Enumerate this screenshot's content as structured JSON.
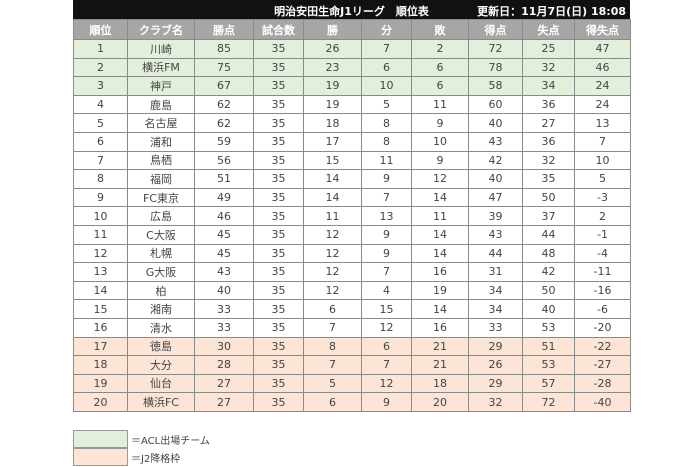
{
  "title": "明治安田生命J1リーグ　順位表",
  "updated": "更新日：11月7日(日) 18:08",
  "colors": {
    "header_bg": "#111111",
    "col_header_bg": "#a6a6a6",
    "acl": "#e2efda",
    "relegation": "#fce4d6"
  },
  "columns": [
    "順位",
    "クラブ名",
    "勝点",
    "試合数",
    "勝",
    "分",
    "敗",
    "得点",
    "失点",
    "得失点"
  ],
  "rows": [
    {
      "zone": "acl",
      "cells": [
        "1",
        "川崎",
        "85",
        "35",
        "26",
        "7",
        "2",
        "72",
        "25",
        "47"
      ]
    },
    {
      "zone": "acl",
      "cells": [
        "2",
        "横浜FM",
        "75",
        "35",
        "23",
        "6",
        "6",
        "78",
        "32",
        "46"
      ]
    },
    {
      "zone": "acl",
      "cells": [
        "3",
        "神戸",
        "67",
        "35",
        "19",
        "10",
        "6",
        "58",
        "34",
        "24"
      ]
    },
    {
      "zone": "",
      "cells": [
        "4",
        "鹿島",
        "62",
        "35",
        "19",
        "5",
        "11",
        "60",
        "36",
        "24"
      ]
    },
    {
      "zone": "",
      "cells": [
        "5",
        "名古屋",
        "62",
        "35",
        "18",
        "8",
        "9",
        "40",
        "27",
        "13"
      ]
    },
    {
      "zone": "",
      "cells": [
        "6",
        "浦和",
        "59",
        "35",
        "17",
        "8",
        "10",
        "43",
        "36",
        "7"
      ]
    },
    {
      "zone": "",
      "cells": [
        "7",
        "鳥栖",
        "56",
        "35",
        "15",
        "11",
        "9",
        "42",
        "32",
        "10"
      ]
    },
    {
      "zone": "",
      "cells": [
        "8",
        "福岡",
        "51",
        "35",
        "14",
        "9",
        "12",
        "40",
        "35",
        "5"
      ]
    },
    {
      "zone": "",
      "cells": [
        "9",
        "FC東京",
        "49",
        "35",
        "14",
        "7",
        "14",
        "47",
        "50",
        "-3"
      ]
    },
    {
      "zone": "",
      "cells": [
        "10",
        "広島",
        "46",
        "35",
        "11",
        "13",
        "11",
        "39",
        "37",
        "2"
      ]
    },
    {
      "zone": "",
      "cells": [
        "11",
        "C大阪",
        "45",
        "35",
        "12",
        "9",
        "14",
        "43",
        "44",
        "-1"
      ]
    },
    {
      "zone": "",
      "cells": [
        "12",
        "札幌",
        "45",
        "35",
        "12",
        "9",
        "14",
        "44",
        "48",
        "-4"
      ]
    },
    {
      "zone": "",
      "cells": [
        "13",
        "G大阪",
        "43",
        "35",
        "12",
        "7",
        "16",
        "31",
        "42",
        "-11"
      ]
    },
    {
      "zone": "",
      "cells": [
        "14",
        "柏",
        "40",
        "35",
        "12",
        "4",
        "19",
        "34",
        "50",
        "-16"
      ]
    },
    {
      "zone": "",
      "cells": [
        "15",
        "湘南",
        "33",
        "35",
        "6",
        "15",
        "14",
        "34",
        "40",
        "-6"
      ]
    },
    {
      "zone": "",
      "cells": [
        "16",
        "清水",
        "33",
        "35",
        "7",
        "12",
        "16",
        "33",
        "53",
        "-20"
      ]
    },
    {
      "zone": "rel",
      "cells": [
        "17",
        "徳島",
        "30",
        "35",
        "8",
        "6",
        "21",
        "29",
        "51",
        "-22"
      ]
    },
    {
      "zone": "rel",
      "cells": [
        "18",
        "大分",
        "28",
        "35",
        "7",
        "7",
        "21",
        "26",
        "53",
        "-27"
      ]
    },
    {
      "zone": "rel",
      "cells": [
        "19",
        "仙台",
        "27",
        "35",
        "5",
        "12",
        "18",
        "29",
        "57",
        "-28"
      ]
    },
    {
      "zone": "rel",
      "cells": [
        "20",
        "横浜FC",
        "27",
        "35",
        "6",
        "9",
        "20",
        "32",
        "72",
        "-40"
      ]
    }
  ],
  "legend": {
    "acl": "＝ACL出場チーム",
    "relegation": "＝J2降格枠"
  }
}
